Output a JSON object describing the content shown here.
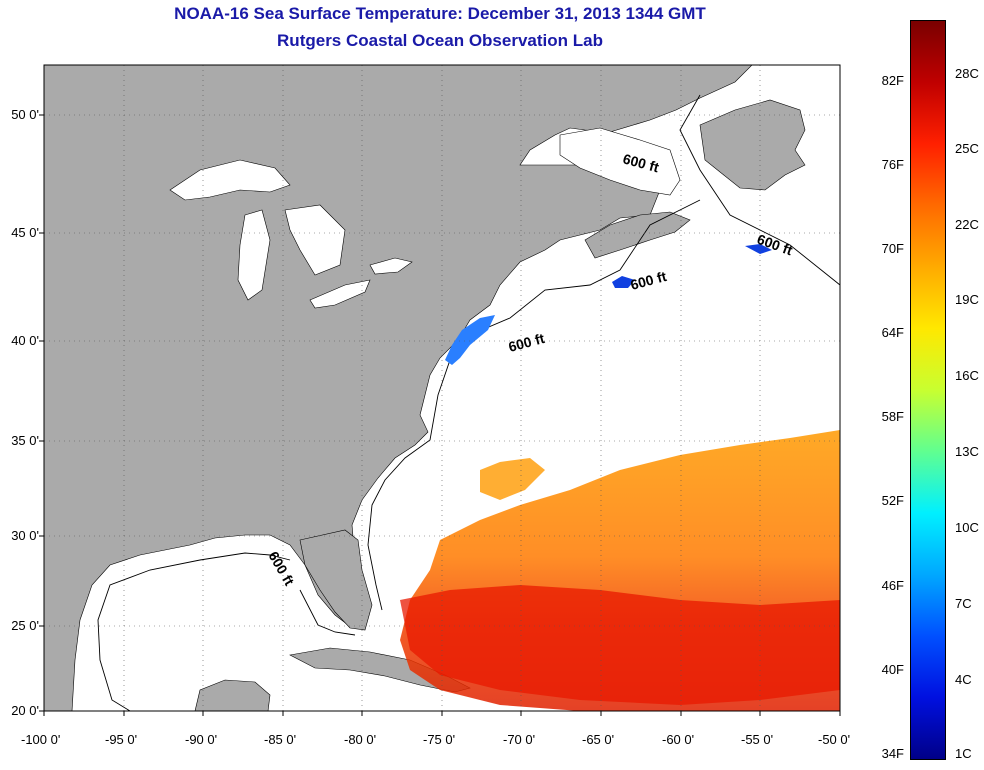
{
  "title": "NOAA-16 Sea Surface Temperature:  December 31, 2013 1344 GMT",
  "subtitle": "Rutgers Coastal Ocean Observation Lab",
  "lat_ticks": [
    "50 0'",
    "45 0'",
    "40 0'",
    "35 0'",
    "30 0'",
    "25 0'",
    "20 0'"
  ],
  "lon_ticks": [
    "-100 0'",
    "-95 0'",
    "-90 0'",
    "-85 0'",
    "-80 0'",
    "-75 0'",
    "-70 0'",
    "-65 0'",
    "-60 0'",
    "-55 0'",
    "-50 0'"
  ],
  "contour_label": "600 ft",
  "colorbar": {
    "f_labels": [
      "82F",
      "76F",
      "70F",
      "64F",
      "58F",
      "52F",
      "46F",
      "40F",
      "34F"
    ],
    "c_labels": [
      "28C",
      "25C",
      "22C",
      "19C",
      "16C",
      "13C",
      "10C",
      "7C",
      "4C",
      "1C"
    ],
    "colors": [
      "#7a0000",
      "#c00000",
      "#ff2000",
      "#ff6a00",
      "#ffaa00",
      "#ffe800",
      "#c8ff30",
      "#60ff90",
      "#00f0ff",
      "#00a8ff",
      "#0050ff",
      "#0010e0",
      "#000088"
    ]
  },
  "colors": {
    "land": "#aaaaaa",
    "ocean": "#ffffff",
    "title": "#1a1aa8"
  }
}
